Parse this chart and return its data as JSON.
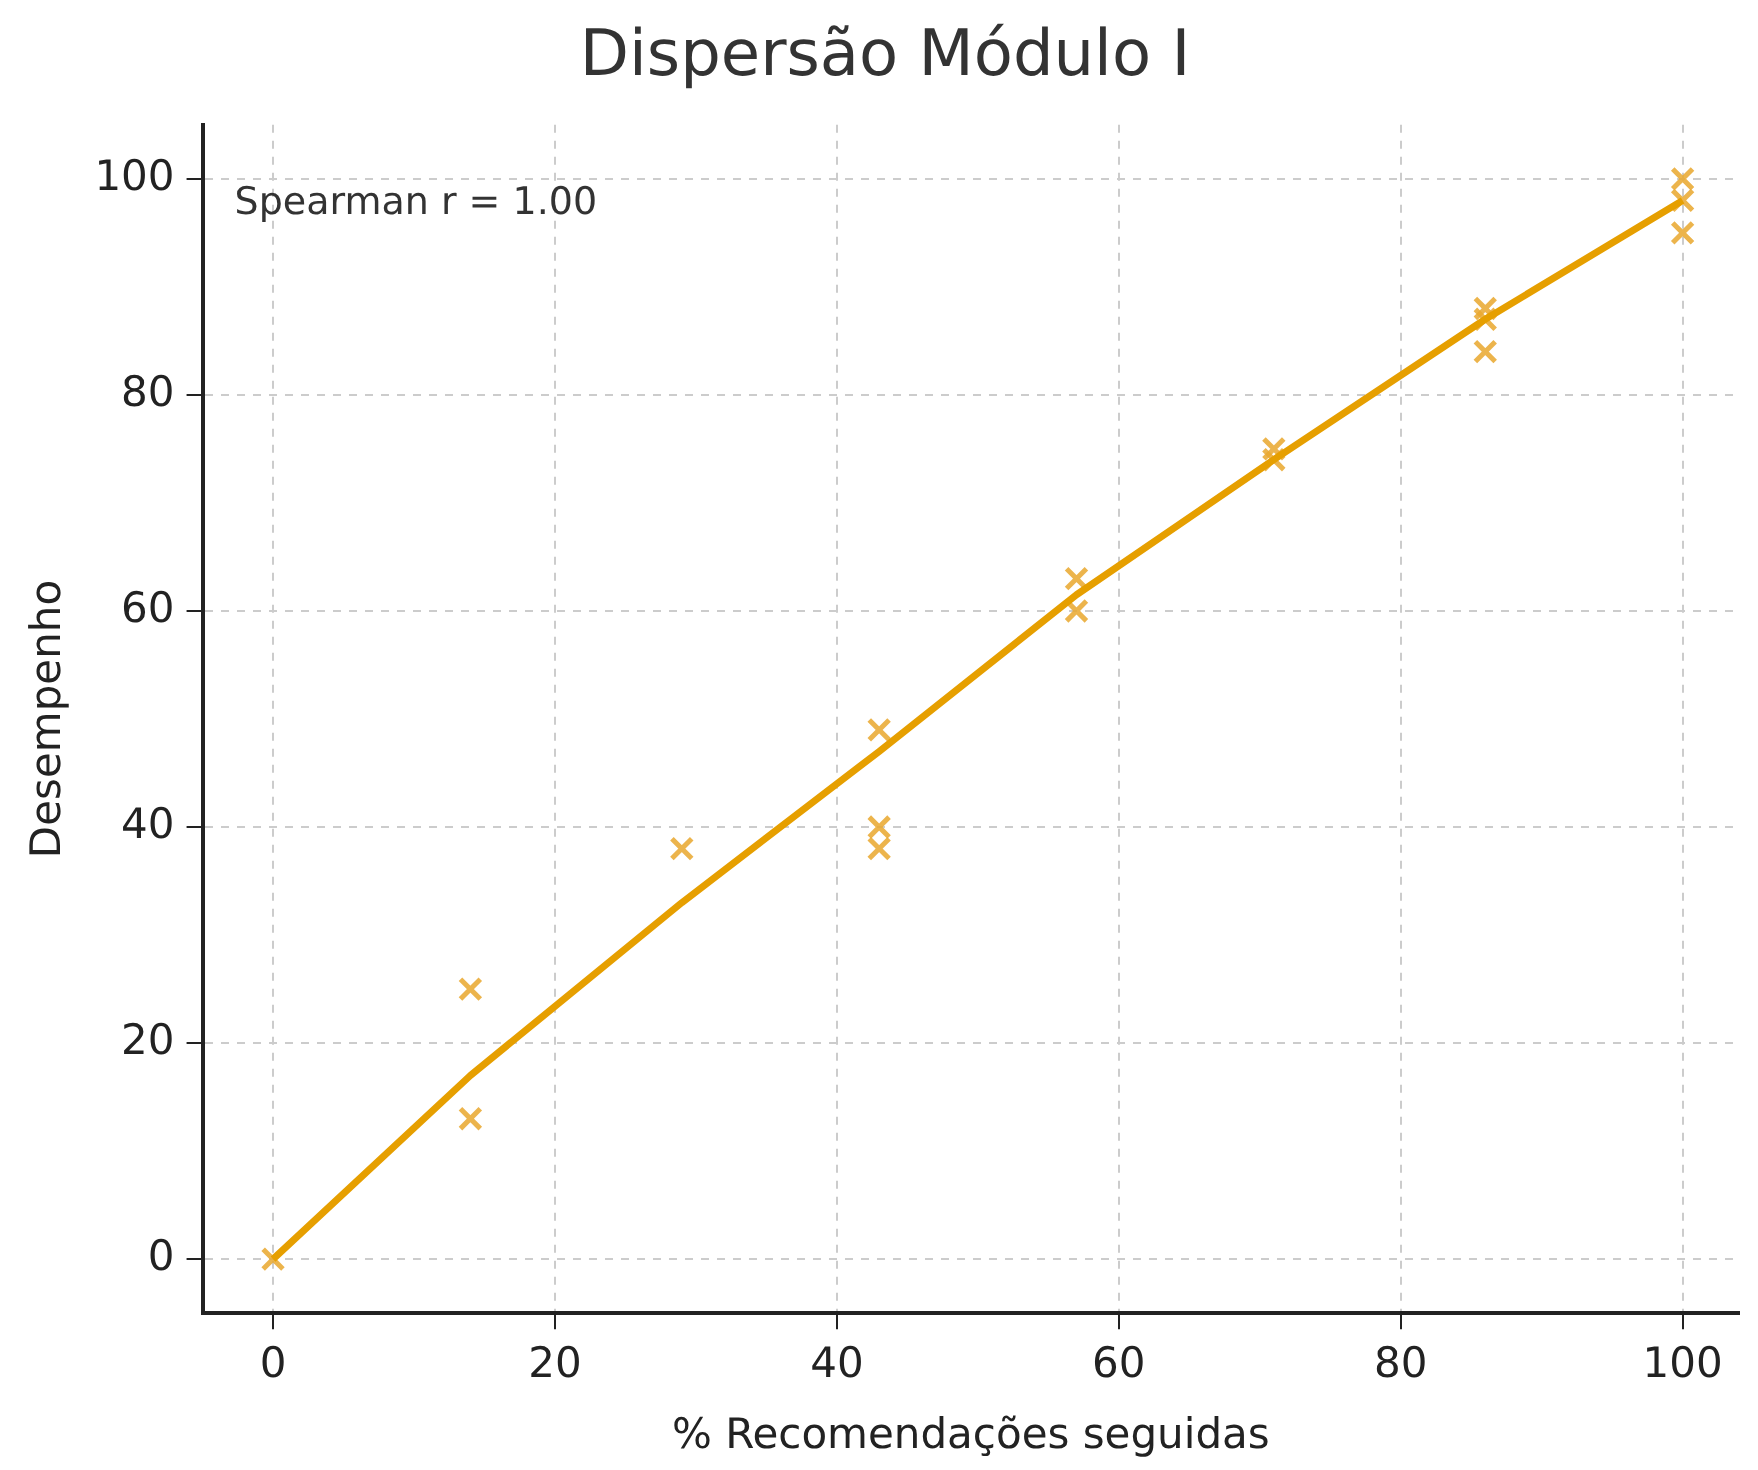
{
  "chart_data": {
    "type": "scatter",
    "title": "Dispersão Módulo I",
    "xlabel": "% Recomendações seguidas",
    "ylabel": "Desempenho",
    "xlim": [
      -5,
      104
    ],
    "ylim": [
      -5,
      105
    ],
    "xticks": [
      0,
      20,
      40,
      60,
      80,
      100
    ],
    "yticks": [
      0,
      20,
      40,
      60,
      80,
      100
    ],
    "grid": true,
    "legend": false,
    "marker": "cross",
    "annotations": [
      "Spearman r = 1.00"
    ],
    "series": [
      {
        "color": "#e9a830",
        "x": [
          0,
          14,
          14,
          29,
          43,
          43,
          43,
          57,
          57,
          71,
          71,
          86,
          86,
          86,
          100,
          100,
          100
        ],
        "values": [
          0,
          25,
          13,
          38,
          49,
          40,
          38,
          63,
          60,
          75,
          74,
          88,
          87,
          84,
          100,
          98,
          95
        ]
      },
      {
        "type": "line",
        "color": "#e69f00",
        "marker": "none",
        "x": [
          0,
          14,
          29,
          43,
          57,
          71,
          86,
          100
        ],
        "values": [
          0,
          17,
          33,
          47,
          61.5,
          74,
          87,
          98
        ]
      }
    ]
  }
}
